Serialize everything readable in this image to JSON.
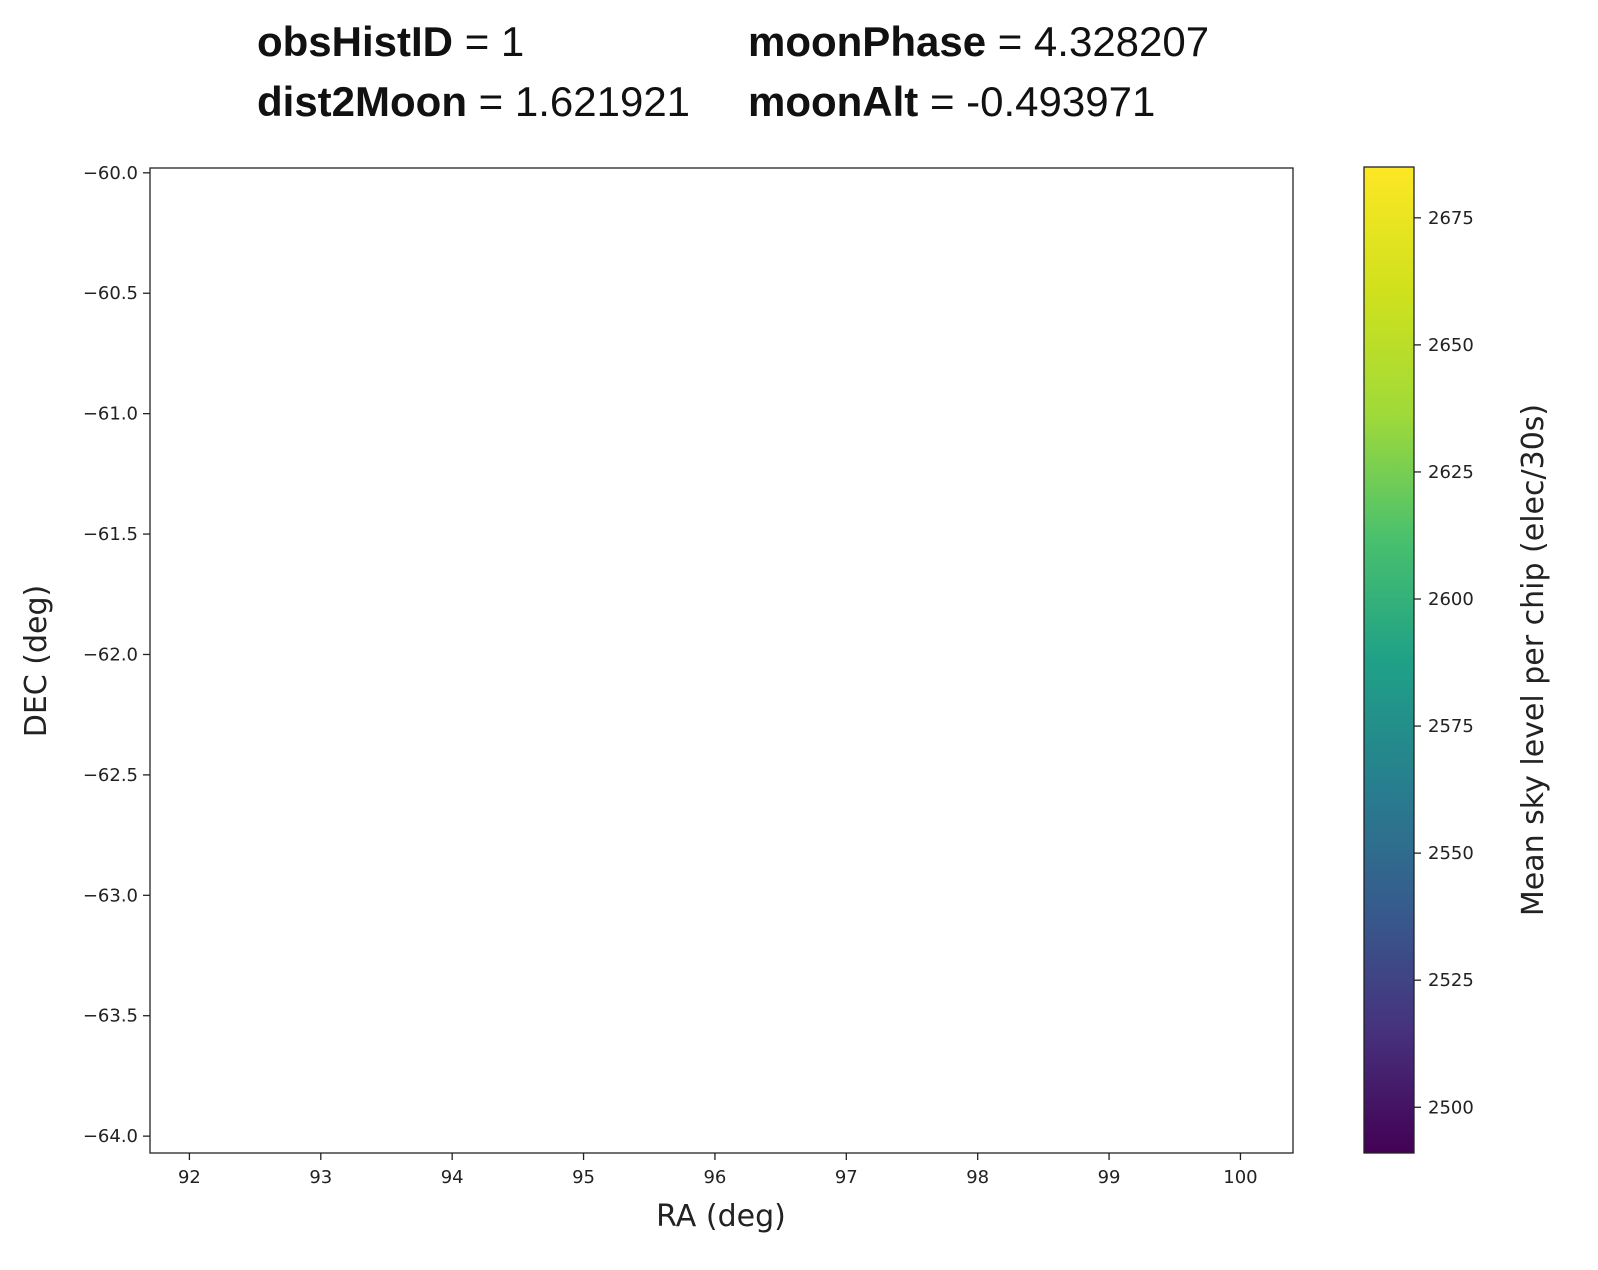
{
  "header": {
    "obshistid_key": "obsHistID",
    "obshistid_val": "= 1",
    "moonphase_key": "moonPhase",
    "moonphase_val": "= 4.328207",
    "dist2moon_key": "dist2Moon",
    "dist2moon_val": "= 1.621921",
    "moonalt_key": "moonAlt",
    "moonalt_val": "= -0.493971"
  },
  "chart_data": {
    "type": "scatter",
    "xlabel": "RA (deg)",
    "ylabel": "DEC (deg)",
    "colorbar_label": "Mean sky level per chip (elec/30s)",
    "xlim": [
      91.7,
      100.4
    ],
    "ylim": [
      -64.07,
      -59.98
    ],
    "xticks": [
      92,
      93,
      94,
      95,
      96,
      97,
      98,
      99,
      100
    ],
    "xtick_labels": [
      "92",
      "93",
      "94",
      "95",
      "96",
      "97",
      "98",
      "99",
      "100"
    ],
    "yticks": [
      -60.0,
      -60.5,
      -61.0,
      -61.5,
      -62.0,
      -62.5,
      -63.0,
      -63.5,
      -64.0
    ],
    "ytick_labels": [
      "−60.0",
      "−60.5",
      "−61.0",
      "−61.5",
      "−62.0",
      "−62.5",
      "−63.0",
      "−63.5",
      "−64.0"
    ],
    "clim": [
      2491,
      2685
    ],
    "cticks": [
      2500,
      2525,
      2550,
      2575,
      2600,
      2625,
      2650,
      2675
    ],
    "ctick_labels": [
      "2500",
      "2525",
      "2550",
      "2575",
      "2600",
      "2625",
      "2650",
      "2675"
    ],
    "colormap": "viridis",
    "grid": false
  }
}
